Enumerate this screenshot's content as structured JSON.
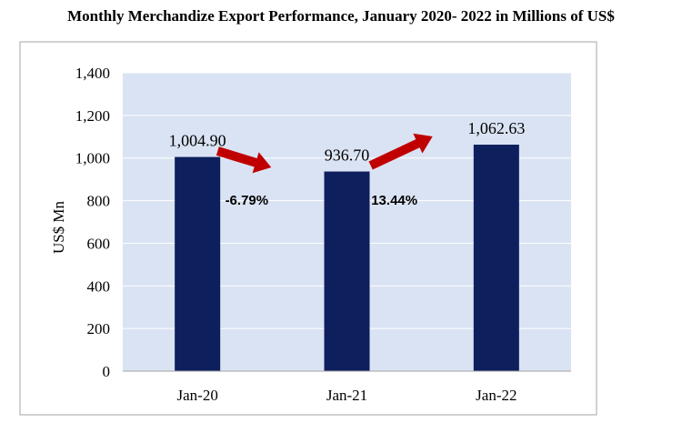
{
  "chart_data": {
    "type": "bar",
    "title": "Monthly Merchandize Export Performance, January 2020- 2022 in Millions of US$",
    "xlabel": "",
    "ylabel": "US$ Mn",
    "ylim": [
      0,
      1400
    ],
    "yticks": [
      0,
      200,
      400,
      600,
      800,
      1000,
      1200,
      1400
    ],
    "ytick_labels": [
      "0",
      "200",
      "400",
      "600",
      "800",
      "1,000",
      "1,200",
      "1,400"
    ],
    "categories": [
      "Jan-20",
      "Jan-21",
      "Jan-22"
    ],
    "values": [
      1004.9,
      936.7,
      1062.63
    ],
    "value_labels": [
      "1,004.90",
      "936.70",
      "1,062.63"
    ],
    "grid": true,
    "colors": {
      "bar": "#0d1f5c",
      "plot_bg": "#dae3f3",
      "arrow": "#c00000",
      "grid": "#ffffff",
      "border": "#a6a6a6"
    },
    "annotations": [
      {
        "text": "-6.79%",
        "from": "Jan-20",
        "to": "Jan-21",
        "direction": "down",
        "icon": "arrow-down-right-icon"
      },
      {
        "text": "13.44%",
        "from": "Jan-21",
        "to": "Jan-22",
        "direction": "up",
        "icon": "arrow-up-right-icon"
      }
    ]
  }
}
